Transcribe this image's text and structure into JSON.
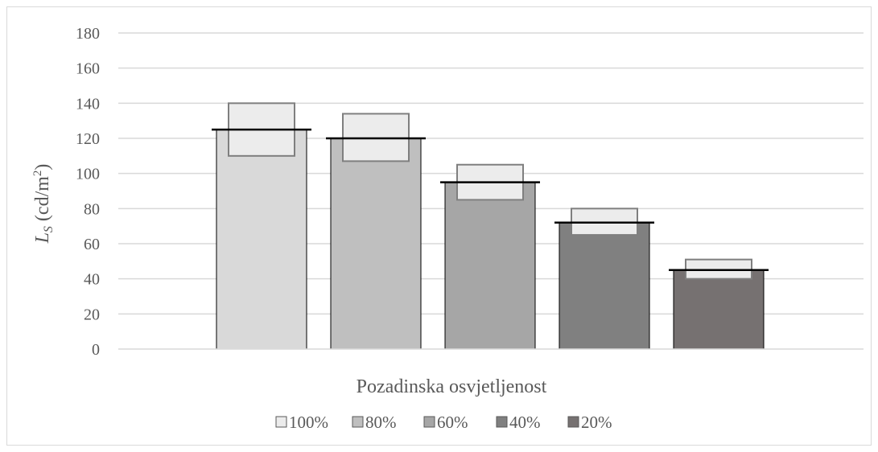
{
  "chart_data": {
    "type": "bar",
    "xlabel": "Pozadinska osvjetljenost",
    "ylabel": {
      "symbol": "L",
      "subscript": "S",
      "unit_prefix": " (cd/m",
      "unit_power": "2",
      "unit_suffix": ")"
    },
    "ylim": [
      0,
      180
    ],
    "yticks": [
      0,
      20,
      40,
      60,
      80,
      100,
      120,
      140,
      160,
      180
    ],
    "grid": true,
    "legend_position": "bottom",
    "series": [
      {
        "name": "100%",
        "value": 125,
        "range_low": 110,
        "range_high": 140,
        "color": "#d9d9d9"
      },
      {
        "name": "80%",
        "value": 120,
        "range_low": 107,
        "range_high": 134,
        "color": "#bfbfbf"
      },
      {
        "name": "60%",
        "value": 95,
        "range_low": 85,
        "range_high": 105,
        "color": "#a6a6a6"
      },
      {
        "name": "40%",
        "value": 72,
        "range_low": 65,
        "range_high": 80,
        "color": "#808080"
      },
      {
        "name": "20%",
        "value": 45,
        "range_low": 40,
        "range_high": 51,
        "color": "#767171"
      }
    ],
    "range_box_color": "#ececec",
    "range_box_border": "#7f7f7f"
  }
}
